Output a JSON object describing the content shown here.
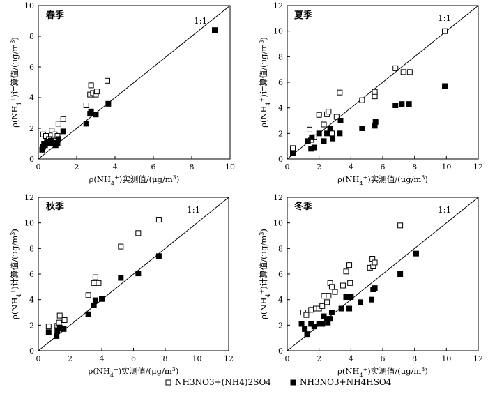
{
  "legend": [
    {
      "marker": "open-square",
      "text": "NH3NO3+(NH4)2SO4"
    },
    {
      "marker": "filled-square",
      "text": "NH3NO3+NH4HSO4"
    }
  ],
  "chart_data": [
    {
      "type": "scatter",
      "title": "春季",
      "xlabel": "ρ(NH4+)实测值/(μg/m3)",
      "ylabel": "ρ(NH4+)计算值/(μg/m3)",
      "xlim": [
        0,
        10
      ],
      "ylim": [
        0,
        10
      ],
      "xticks": [
        "0",
        "2",
        "4",
        "6",
        "8",
        "10"
      ],
      "yticks": [
        "0",
        "2",
        "4",
        "6",
        "8",
        "10"
      ],
      "ref_line_label": "1:1",
      "series": [
        {
          "name": "NH3NO3+(NH4)2SO4",
          "marker": "open-square",
          "points": [
            [
              0.25,
              1.6
            ],
            [
              0.4,
              1.5
            ],
            [
              0.55,
              1.3
            ],
            [
              0.7,
              1.85
            ],
            [
              0.8,
              1.2
            ],
            [
              0.85,
              1.6
            ],
            [
              1.0,
              1.5
            ],
            [
              1.05,
              2.3
            ],
            [
              1.3,
              2.6
            ],
            [
              2.5,
              3.5
            ],
            [
              2.7,
              4.2
            ],
            [
              2.75,
              4.8
            ],
            [
              2.85,
              4.3
            ],
            [
              3.0,
              4.2
            ],
            [
              3.05,
              4.4
            ],
            [
              3.6,
              5.1
            ]
          ]
        },
        {
          "name": "NH3NO3+NH4HSO4",
          "marker": "filled-square",
          "points": [
            [
              0.2,
              0.6
            ],
            [
              0.25,
              0.8
            ],
            [
              0.3,
              1.0
            ],
            [
              0.35,
              0.9
            ],
            [
              0.45,
              1.1
            ],
            [
              0.55,
              1.0
            ],
            [
              0.65,
              1.2
            ],
            [
              0.8,
              1.05
            ],
            [
              0.9,
              0.9
            ],
            [
              1.0,
              1.0
            ],
            [
              1.05,
              1.3
            ],
            [
              1.3,
              1.8
            ],
            [
              2.5,
              2.3
            ],
            [
              2.7,
              2.95
            ],
            [
              2.75,
              3.1
            ],
            [
              3.0,
              2.9
            ],
            [
              3.65,
              3.6
            ],
            [
              9.2,
              8.4
            ]
          ]
        }
      ]
    },
    {
      "type": "scatter",
      "title": "夏季",
      "xlabel": "ρ(NH4+)实测值/(μg/m3)",
      "ylabel": "ρ(NH4+)计算值/(μg/m3)",
      "xlim": [
        0,
        12
      ],
      "ylim": [
        0,
        12
      ],
      "xticks": [
        "0",
        "2",
        "4",
        "6",
        "8",
        "10",
        "12"
      ],
      "yticks": [
        "0",
        "2",
        "4",
        "6",
        "8",
        "10",
        "12"
      ],
      "ref_line_label": "1:1",
      "series": [
        {
          "name": "NH3NO3+(NH4)2SO4",
          "marker": "open-square",
          "points": [
            [
              0.35,
              0.85
            ],
            [
              1.4,
              2.3
            ],
            [
              1.5,
              1.5
            ],
            [
              1.7,
              1.7
            ],
            [
              2.0,
              3.45
            ],
            [
              2.3,
              2.7
            ],
            [
              2.5,
              3.5
            ],
            [
              2.6,
              3.7
            ],
            [
              2.8,
              2.0
            ],
            [
              3.1,
              3.3
            ],
            [
              3.3,
              5.2
            ],
            [
              4.7,
              4.6
            ],
            [
              5.5,
              4.9
            ],
            [
              5.5,
              5.25
            ],
            [
              6.8,
              7.1
            ],
            [
              7.3,
              6.8
            ],
            [
              7.7,
              6.8
            ],
            [
              9.9,
              10.0
            ]
          ]
        },
        {
          "name": "NH3NO3+NH4HSO4",
          "marker": "filled-square",
          "points": [
            [
              0.35,
              0.45
            ],
            [
              1.3,
              1.4
            ],
            [
              1.5,
              0.8
            ],
            [
              1.55,
              1.7
            ],
            [
              1.7,
              0.9
            ],
            [
              2.0,
              2.0
            ],
            [
              2.3,
              1.4
            ],
            [
              2.5,
              2.0
            ],
            [
              2.7,
              2.4
            ],
            [
              2.85,
              1.6
            ],
            [
              3.3,
              2.0
            ],
            [
              3.35,
              3.0
            ],
            [
              4.7,
              2.4
            ],
            [
              5.5,
              2.6
            ],
            [
              5.55,
              2.9
            ],
            [
              6.8,
              4.2
            ],
            [
              7.2,
              4.3
            ],
            [
              7.65,
              4.3
            ],
            [
              9.9,
              5.7
            ]
          ]
        }
      ]
    },
    {
      "type": "scatter",
      "title": "秋季",
      "xlabel": "ρ(NH4+)实测值/(μg/m3)",
      "ylabel": "ρ(NH4+)计算值/(μg/m3)",
      "xlim": [
        0,
        12
      ],
      "ylim": [
        0,
        12
      ],
      "xticks": [
        "0",
        "2",
        "4",
        "6",
        "8",
        "10",
        "12"
      ],
      "yticks": [
        "0",
        "2",
        "4",
        "6",
        "8",
        "10",
        "12"
      ],
      "ref_line_label": "1:1",
      "series": [
        {
          "name": "NH3NO3+(NH4)2SO4",
          "marker": "open-square",
          "points": [
            [
              0.65,
              1.9
            ],
            [
              1.2,
              1.95
            ],
            [
              1.3,
              2.2
            ],
            [
              1.35,
              2.75
            ],
            [
              1.65,
              2.4
            ],
            [
              3.15,
              4.35
            ],
            [
              3.5,
              5.3
            ],
            [
              3.6,
              5.75
            ],
            [
              3.8,
              5.3
            ],
            [
              5.2,
              8.15
            ],
            [
              6.3,
              9.2
            ],
            [
              7.6,
              10.25
            ]
          ]
        },
        {
          "name": "NH3NO3+NH4HSO4",
          "marker": "filled-square",
          "points": [
            [
              0.65,
              1.45
            ],
            [
              1.15,
              1.15
            ],
            [
              1.2,
              1.6
            ],
            [
              1.35,
              1.8
            ],
            [
              1.6,
              1.7
            ],
            [
              3.15,
              2.85
            ],
            [
              3.5,
              3.55
            ],
            [
              3.6,
              3.95
            ],
            [
              4.0,
              4.05
            ],
            [
              5.2,
              5.7
            ],
            [
              6.3,
              6.05
            ],
            [
              7.6,
              7.4
            ]
          ]
        }
      ]
    },
    {
      "type": "scatter",
      "title": "冬季",
      "xlabel": "ρ(NH4+)实测值/(μg/m3)",
      "ylabel": "ρ(NH4+)计算值/(μg/m3)",
      "xlim": [
        0,
        12
      ],
      "ylim": [
        0,
        12
      ],
      "xticks": [
        "0",
        "2",
        "4",
        "6",
        "8",
        "10",
        "12"
      ],
      "yticks": [
        "0",
        "2",
        "4",
        "6",
        "8",
        "10",
        "12"
      ],
      "ref_line_label": "1:1",
      "series": [
        {
          "name": "NH3NO3+(NH4)2SO4",
          "marker": "open-square",
          "points": [
            [
              1.0,
              3.0
            ],
            [
              1.2,
              2.8
            ],
            [
              1.5,
              3.2
            ],
            [
              1.8,
              3.3
            ],
            [
              2.0,
              3.3
            ],
            [
              2.2,
              3.5
            ],
            [
              2.3,
              4.3
            ],
            [
              2.5,
              3.8
            ],
            [
              2.6,
              4.3
            ],
            [
              2.7,
              5.3
            ],
            [
              2.8,
              5.0
            ],
            [
              3.0,
              4.6
            ],
            [
              3.5,
              5.1
            ],
            [
              3.7,
              6.2
            ],
            [
              3.9,
              6.7
            ],
            [
              3.95,
              5.3
            ],
            [
              5.2,
              6.5
            ],
            [
              5.35,
              7.2
            ],
            [
              5.4,
              6.6
            ],
            [
              5.5,
              6.9
            ],
            [
              7.1,
              9.8
            ]
          ]
        },
        {
          "name": "NH3NO3+NH4HSO4",
          "marker": "filled-square",
          "points": [
            [
              0.9,
              2.1
            ],
            [
              1.1,
              1.7
            ],
            [
              1.25,
              1.3
            ],
            [
              1.5,
              2.1
            ],
            [
              1.7,
              1.9
            ],
            [
              2.0,
              2.1
            ],
            [
              2.2,
              2.1
            ],
            [
              2.3,
              2.7
            ],
            [
              2.5,
              2.5
            ],
            [
              2.55,
              2.2
            ],
            [
              2.7,
              2.5
            ],
            [
              2.8,
              3.0
            ],
            [
              3.4,
              3.3
            ],
            [
              3.7,
              4.2
            ],
            [
              3.9,
              3.3
            ],
            [
              4.0,
              4.2
            ],
            [
              4.6,
              3.8
            ],
            [
              5.3,
              4.0
            ],
            [
              5.4,
              4.8
            ],
            [
              5.5,
              4.9
            ],
            [
              7.1,
              6.0
            ],
            [
              8.1,
              7.6
            ]
          ]
        }
      ]
    }
  ]
}
